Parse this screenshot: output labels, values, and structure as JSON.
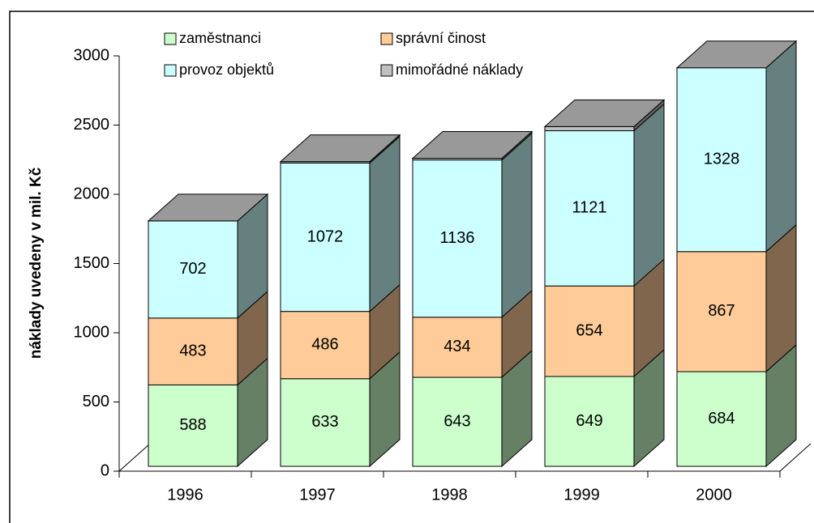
{
  "chart_data": {
    "type": "bar3d_stacked",
    "ylabel": "náklady uvedeny v mil. Kč",
    "categories": [
      "1996",
      "1997",
      "1998",
      "1999",
      "2000"
    ],
    "series": [
      {
        "name": "zaměstnanci",
        "color": "#ccffcc",
        "values": [
          588,
          633,
          643,
          649,
          684
        ]
      },
      {
        "name": "správní činost",
        "color": "#ffcc99",
        "values": [
          483,
          486,
          434,
          654,
          867
        ]
      },
      {
        "name": "provoz objektů",
        "color": "#ccffff",
        "values": [
          702,
          1072,
          1136,
          1121,
          1328
        ]
      },
      {
        "name": "mimořádné náklady",
        "color": "#c0c0c0",
        "values": [
          0,
          10,
          12,
          30,
          0
        ]
      }
    ],
    "ylim": [
      0,
      3000
    ],
    "yticks": [
      0,
      500,
      1000,
      1500,
      2000,
      2500,
      3000
    ],
    "legend": "top"
  }
}
